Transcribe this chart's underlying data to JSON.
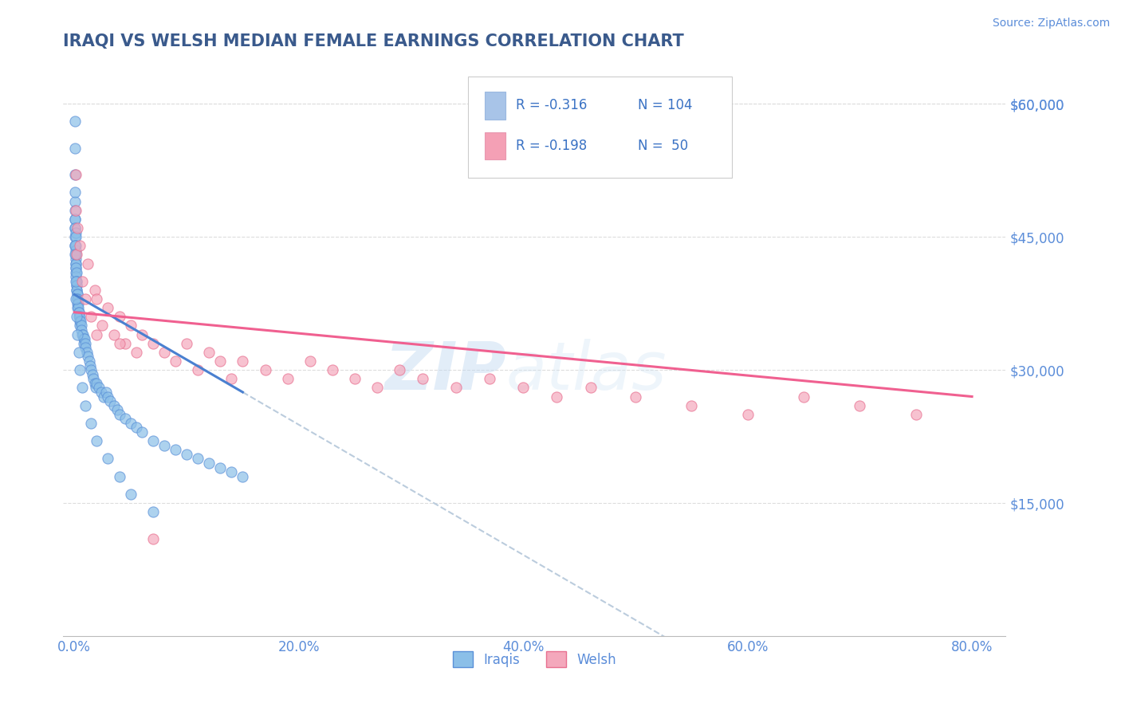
{
  "title": "IRAQI VS WELSH MEDIAN FEMALE EARNINGS CORRELATION CHART",
  "source": "Source: ZipAtlas.com",
  "xlabel_ticks": [
    "0.0%",
    "20.0%",
    "40.0%",
    "60.0%",
    "80.0%"
  ],
  "xlabel_vals": [
    0.0,
    20.0,
    40.0,
    60.0,
    80.0
  ],
  "ylabel_ticks": [
    "$15,000",
    "$30,000",
    "$45,000",
    "$60,000"
  ],
  "ylabel_vals": [
    15000,
    30000,
    45000,
    60000
  ],
  "ylim": [
    0,
    65000
  ],
  "xlim": [
    -1.0,
    83
  ],
  "title_color": "#3a5a8c",
  "axis_color": "#5b8dd9",
  "legend": {
    "r1": "-0.316",
    "n1": "104",
    "r2": "-0.198",
    "n2": "50",
    "color1": "#a8c4e8",
    "color2": "#f4a0b5",
    "text_color": "#3a72c4"
  },
  "iraqi_scatter_x": [
    0.02,
    0.03,
    0.04,
    0.04,
    0.05,
    0.05,
    0.06,
    0.06,
    0.07,
    0.07,
    0.08,
    0.08,
    0.09,
    0.09,
    0.1,
    0.1,
    0.11,
    0.11,
    0.12,
    0.12,
    0.13,
    0.13,
    0.14,
    0.15,
    0.15,
    0.16,
    0.17,
    0.18,
    0.19,
    0.2,
    0.21,
    0.22,
    0.23,
    0.24,
    0.25,
    0.26,
    0.28,
    0.3,
    0.32,
    0.35,
    0.38,
    0.4,
    0.42,
    0.45,
    0.48,
    0.5,
    0.55,
    0.6,
    0.65,
    0.7,
    0.75,
    0.8,
    0.85,
    0.9,
    0.95,
    1.0,
    1.1,
    1.2,
    1.3,
    1.4,
    1.5,
    1.6,
    1.7,
    1.8,
    1.9,
    2.0,
    2.2,
    2.4,
    2.6,
    2.8,
    3.0,
    3.2,
    3.5,
    3.8,
    4.0,
    4.5,
    5.0,
    5.5,
    6.0,
    7.0,
    8.0,
    9.0,
    10.0,
    11.0,
    12.0,
    13.0,
    14.0,
    15.0,
    0.05,
    0.07,
    0.1,
    0.15,
    0.2,
    0.3,
    0.4,
    0.5,
    0.7,
    1.0,
    1.5,
    2.0,
    3.0,
    4.0,
    5.0,
    7.0
  ],
  "iraqi_scatter_y": [
    58000,
    55000,
    52000,
    49000,
    50000,
    47000,
    48000,
    46000,
    47000,
    45000,
    46000,
    44000,
    45500,
    43000,
    45000,
    42500,
    44000,
    42000,
    43500,
    41500,
    43000,
    41000,
    42000,
    41500,
    40500,
    40000,
    41000,
    40000,
    39500,
    39000,
    39500,
    39000,
    38500,
    38000,
    38500,
    38000,
    37500,
    37000,
    37500,
    37000,
    36500,
    36000,
    36500,
    36000,
    35500,
    35000,
    35500,
    35000,
    34500,
    34000,
    34000,
    33500,
    33000,
    33500,
    33000,
    32500,
    32000,
    31500,
    31000,
    30500,
    30000,
    29500,
    29000,
    28500,
    28000,
    28500,
    28000,
    27500,
    27000,
    27500,
    27000,
    26500,
    26000,
    25500,
    25000,
    24500,
    24000,
    23500,
    23000,
    22000,
    21500,
    21000,
    20500,
    20000,
    19500,
    19000,
    18500,
    18000,
    44000,
    43000,
    40000,
    38000,
    36000,
    34000,
    32000,
    30000,
    28000,
    26000,
    24000,
    22000,
    20000,
    18000,
    16000,
    14000
  ],
  "welsh_scatter_x": [
    0.1,
    0.15,
    0.2,
    0.3,
    0.5,
    0.7,
    1.0,
    1.2,
    1.5,
    1.8,
    2.0,
    2.5,
    3.0,
    3.5,
    4.0,
    4.5,
    5.0,
    5.5,
    6.0,
    7.0,
    8.0,
    9.0,
    10.0,
    11.0,
    12.0,
    13.0,
    14.0,
    15.0,
    17.0,
    19.0,
    21.0,
    23.0,
    25.0,
    27.0,
    29.0,
    31.0,
    34.0,
    37.0,
    40.0,
    43.0,
    46.0,
    50.0,
    55.0,
    60.0,
    65.0,
    70.0,
    75.0,
    2.0,
    4.0,
    7.0
  ],
  "welsh_scatter_y": [
    48000,
    52000,
    43000,
    46000,
    44000,
    40000,
    38000,
    42000,
    36000,
    39000,
    38000,
    35000,
    37000,
    34000,
    36000,
    33000,
    35000,
    32000,
    34000,
    33000,
    32000,
    31000,
    33000,
    30000,
    32000,
    31000,
    29000,
    31000,
    30000,
    29000,
    31000,
    30000,
    29000,
    28000,
    30000,
    29000,
    28000,
    29000,
    28000,
    27000,
    28000,
    27000,
    26000,
    25000,
    27000,
    26000,
    25000,
    34000,
    33000,
    11000
  ],
  "iraqi_color": "#8bbfe8",
  "welsh_color": "#f4a8bc",
  "iraqi_line_color": "#4a80d0",
  "welsh_line_color": "#f06090",
  "iraqi_edge_color": "#5a90d8",
  "welsh_edge_color": "#e87090",
  "dashed_line_color": "#bbccdd",
  "grid_color": "#dddddd",
  "background_color": "#ffffff",
  "iraqi_line_x0": 0.0,
  "iraqi_line_y0": 38500,
  "iraqi_line_x1": 15.0,
  "iraqi_line_y1": 27500,
  "iraqi_dash_x0": 15.0,
  "iraqi_dash_x1": 55.0,
  "welsh_line_x0": 0.0,
  "welsh_line_y0": 36500,
  "welsh_line_x1": 80.0,
  "welsh_line_y1": 27000
}
